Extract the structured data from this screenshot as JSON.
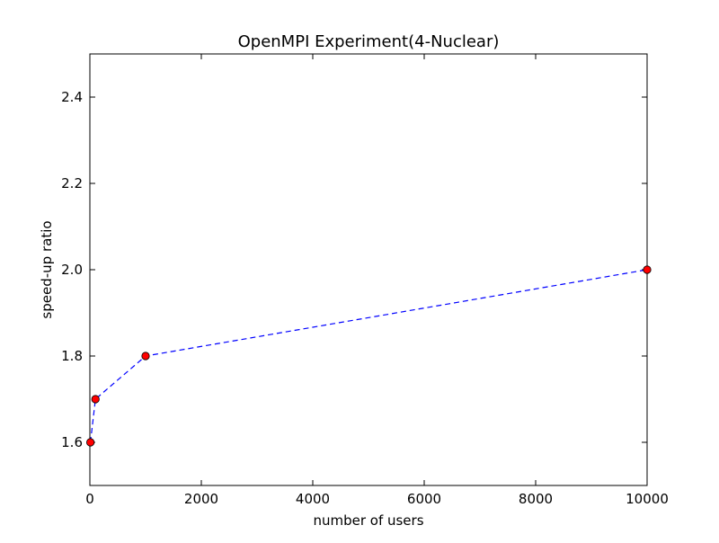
{
  "chart_data": {
    "type": "line",
    "title": "OpenMPI Experiment(4-Nuclear)",
    "xlabel": "number of users",
    "ylabel": "speed-up ratio",
    "xlim": [
      0,
      10000
    ],
    "ylim": [
      1.5,
      2.5
    ],
    "x_ticks": [
      0,
      2000,
      4000,
      6000,
      8000,
      10000
    ],
    "y_ticks": [
      1.6,
      1.8,
      2.0,
      2.2,
      2.4
    ],
    "x_tick_labels": [
      "0",
      "2000",
      "4000",
      "6000",
      "8000",
      "10000"
    ],
    "y_tick_labels": [
      "1.6",
      "1.8",
      "2.0",
      "2.2",
      "2.4"
    ],
    "grid": false,
    "series": [
      {
        "x": [
          10,
          100,
          1000,
          10000
        ],
        "y": [
          1.6,
          1.7,
          1.8,
          2.0
        ],
        "line_color": "#0000ff",
        "line_style": "dashed",
        "marker": "circle",
        "marker_color": "#ff0000",
        "marker_edge_color": "#000000"
      }
    ]
  }
}
